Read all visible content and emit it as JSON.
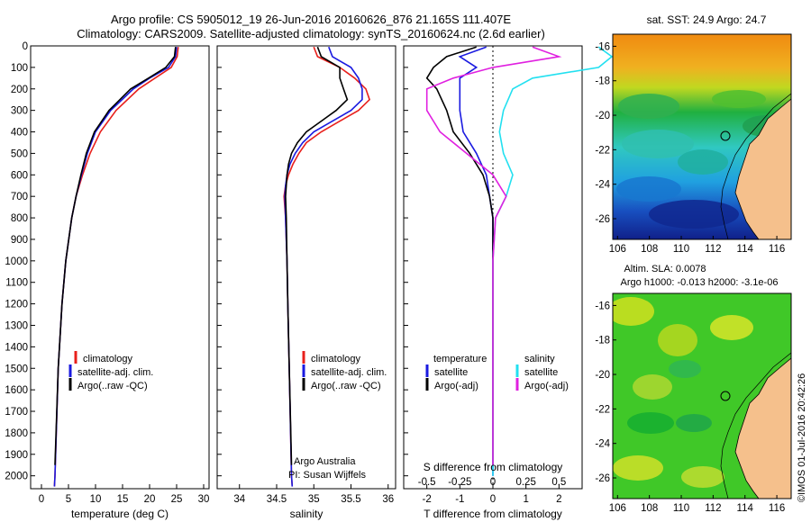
{
  "header": {
    "title_line1": "Argo profile: CS 5905012_19 26-Jun-2016 20160626_876 21.165S 111.407E",
    "title_line2": "Climatology: CARS2009. Satellite-adjusted climatology: synTS_20160624.nc (2.6d earlier)"
  },
  "colors": {
    "climatology": "#e8201c",
    "satellite": "#1a1ae0",
    "argo": "#000000",
    "s_satellite": "#22e0f0",
    "s_argo": "#e020e0",
    "land": "#f5c08c"
  },
  "chart_data": [
    {
      "type": "line",
      "xlabel": "temperature (deg C)",
      "ylabel": "",
      "xlim": [
        -2,
        31
      ],
      "ylim": [
        2060,
        0
      ],
      "xticks": [
        "0",
        "5",
        "10",
        "15",
        "20",
        "25",
        "30"
      ],
      "yticks": [
        "0",
        "100",
        "200",
        "300",
        "400",
        "500",
        "600",
        "700",
        "800",
        "900",
        "1000",
        "1100",
        "1200",
        "1300",
        "1400",
        "1500",
        "1600",
        "1700",
        "1800",
        "1900",
        "2000"
      ],
      "legend": [
        "climatology",
        "satellite-adj. clim.",
        "Argo(..raw -QC)"
      ],
      "series": [
        {
          "name": "climatology",
          "depth": [
            5,
            50,
            100,
            150,
            200,
            300,
            400,
            500,
            600,
            700,
            800,
            1000,
            1200,
            1500,
            2000,
            2050
          ],
          "values": [
            25.3,
            25.1,
            24.0,
            21.0,
            18.0,
            13.8,
            10.9,
            9.0,
            7.6,
            6.4,
            5.6,
            4.5,
            3.8,
            3.1,
            2.5,
            2.4
          ]
        },
        {
          "name": "satellite-adj. clim.",
          "depth": [
            5,
            50,
            100,
            150,
            200,
            300,
            400,
            500,
            600,
            700,
            800,
            1000,
            1200,
            1500,
            2000,
            2050
          ],
          "values": [
            25.0,
            24.8,
            23.5,
            20.0,
            17.0,
            12.8,
            10.0,
            8.5,
            7.4,
            6.4,
            5.6,
            4.5,
            3.8,
            3.1,
            2.5,
            2.4
          ]
        },
        {
          "name": "Argo(..raw -QC)",
          "depth": [
            5,
            50,
            100,
            150,
            200,
            300,
            400,
            500,
            600,
            700,
            800,
            1000,
            1200,
            1500,
            1800,
            1950
          ],
          "values": [
            24.8,
            24.6,
            23.0,
            19.8,
            16.5,
            12.5,
            9.8,
            8.3,
            7.3,
            6.4,
            5.6,
            4.5,
            3.8,
            3.1,
            2.7,
            2.5
          ]
        }
      ]
    },
    {
      "type": "line",
      "xlabel": "salinity",
      "ylabel": "",
      "xlim": [
        33.7,
        36.1
      ],
      "ylim": [
        2060,
        0
      ],
      "xticks": [
        "34",
        "34.5",
        "35",
        "35.5",
        "36"
      ],
      "legend": [
        "climatology",
        "satellite-adj. clim.",
        "Argo(..raw -QC)"
      ],
      "annotations": [
        "Argo Australia",
        "PI: Susan Wijffels"
      ],
      "series": [
        {
          "name": "climatology",
          "depth": [
            5,
            50,
            100,
            150,
            200,
            250,
            300,
            350,
            400,
            450,
            500,
            550,
            600,
            650,
            700,
            800,
            1000,
            1200,
            1500,
            2000,
            2050
          ],
          "values": [
            35.0,
            35.05,
            35.35,
            35.55,
            35.7,
            35.75,
            35.6,
            35.35,
            35.1,
            34.9,
            34.8,
            34.72,
            34.66,
            34.62,
            34.6,
            34.62,
            34.64,
            34.65,
            34.67,
            34.7,
            34.71
          ]
        },
        {
          "name": "satellite-adj. clim.",
          "depth": [
            5,
            50,
            100,
            150,
            200,
            250,
            300,
            350,
            400,
            450,
            500,
            550,
            600,
            650,
            700,
            800,
            1000,
            1200,
            1500,
            2000,
            2050
          ],
          "values": [
            35.2,
            35.25,
            35.5,
            35.6,
            35.65,
            35.65,
            35.5,
            35.25,
            35.0,
            34.85,
            34.75,
            34.68,
            34.64,
            34.62,
            34.61,
            34.62,
            34.64,
            34.65,
            34.67,
            34.7,
            34.71
          ]
        },
        {
          "name": "Argo(..raw -QC)",
          "depth": [
            5,
            50,
            100,
            150,
            200,
            250,
            300,
            350,
            400,
            450,
            500,
            550,
            600,
            650,
            700,
            800,
            1000,
            1200,
            1500,
            1800,
            1950
          ],
          "values": [
            35.05,
            35.1,
            35.35,
            35.35,
            35.4,
            35.45,
            35.3,
            35.1,
            34.9,
            34.78,
            34.7,
            34.66,
            34.64,
            34.63,
            34.62,
            34.63,
            34.64,
            34.65,
            34.67,
            34.69,
            34.7
          ]
        }
      ]
    },
    {
      "type": "line",
      "xlabel": "T difference from climatology",
      "top_label": "S difference from climatology",
      "xlim": [
        -2.7,
        2.7
      ],
      "ylim": [
        2060,
        0
      ],
      "xticks": [
        "-2",
        "-1",
        "0",
        "1",
        "2"
      ],
      "top_xticks": [
        "-0.5",
        "-0.25",
        "0",
        "0.25",
        "0.5"
      ],
      "legend_titles": [
        "temperature",
        "salinity"
      ],
      "legend": [
        "satellite",
        "Argo(-adj)",
        "satellite",
        "Argo(-adj)"
      ],
      "series": [
        {
          "name": "satellite",
          "quantity": "temperature",
          "depth": [
            5,
            50,
            100,
            150,
            200,
            300,
            400,
            500,
            600,
            700,
            800,
            1000,
            1500,
            2000
          ],
          "values": [
            -0.2,
            -1.0,
            -0.5,
            -1.0,
            -1.0,
            -1.0,
            -0.9,
            -0.5,
            -0.2,
            -0.1,
            0.0,
            0.0,
            0.0,
            0.0
          ]
        },
        {
          "name": "Argo(-adj)",
          "quantity": "temperature",
          "depth": [
            5,
            50,
            100,
            150,
            200,
            300,
            400,
            500,
            600,
            700,
            800,
            1000,
            1500,
            1950
          ],
          "values": [
            -0.5,
            -1.4,
            -1.8,
            -2.0,
            -1.7,
            -1.4,
            -1.2,
            -0.7,
            -0.3,
            -0.1,
            0.0,
            0.0,
            0.0,
            0.0
          ]
        },
        {
          "name": "satellite",
          "quantity": "salinity",
          "depth": [
            5,
            50,
            100,
            150,
            200,
            300,
            400,
            500,
            600,
            700,
            800,
            1000,
            1500,
            2000
          ],
          "values": [
            0.8,
            0.9,
            0.8,
            0.3,
            0.15,
            0.08,
            0.05,
            0.08,
            0.15,
            0.1,
            0.02,
            0.0,
            0.0,
            0.0
          ]
        },
        {
          "name": "Argo(-adj)",
          "quantity": "salinity",
          "depth": [
            5,
            50,
            100,
            150,
            200,
            300,
            400,
            500,
            600,
            700,
            800,
            1000,
            1500,
            1950
          ],
          "values": [
            0.3,
            0.5,
            0.0,
            -0.3,
            -0.5,
            -0.5,
            -0.4,
            -0.2,
            0.0,
            0.1,
            0.02,
            0.0,
            0.0,
            0.0
          ]
        }
      ]
    },
    {
      "type": "heatmap",
      "title": "sat. SST: 24.9 Argo: 24.7",
      "xticks": [
        "106",
        "108",
        "110",
        "112",
        "114",
        "116"
      ],
      "yticks": [
        "-16",
        "-18",
        "-20",
        "-22",
        "-24",
        "-26"
      ],
      "xlim": [
        105.7,
        116.9
      ],
      "ylim": [
        -27.2,
        -15.3
      ]
    },
    {
      "type": "heatmap",
      "title_line1": "Altim. SLA: 0.0078",
      "title_line2": "Argo h1000: -0.013 h2000: -3.1e-06",
      "xticks": [
        "106",
        "108",
        "110",
        "112",
        "114",
        "116"
      ],
      "yticks": [
        "-16",
        "-18",
        "-20",
        "-22",
        "-24",
        "-26"
      ],
      "xlim": [
        105.7,
        116.9
      ],
      "ylim": [
        -27.2,
        -15.3
      ]
    }
  ],
  "footer": {
    "watermark": "©IMOS 01-Jul-2016 20:42:26"
  }
}
